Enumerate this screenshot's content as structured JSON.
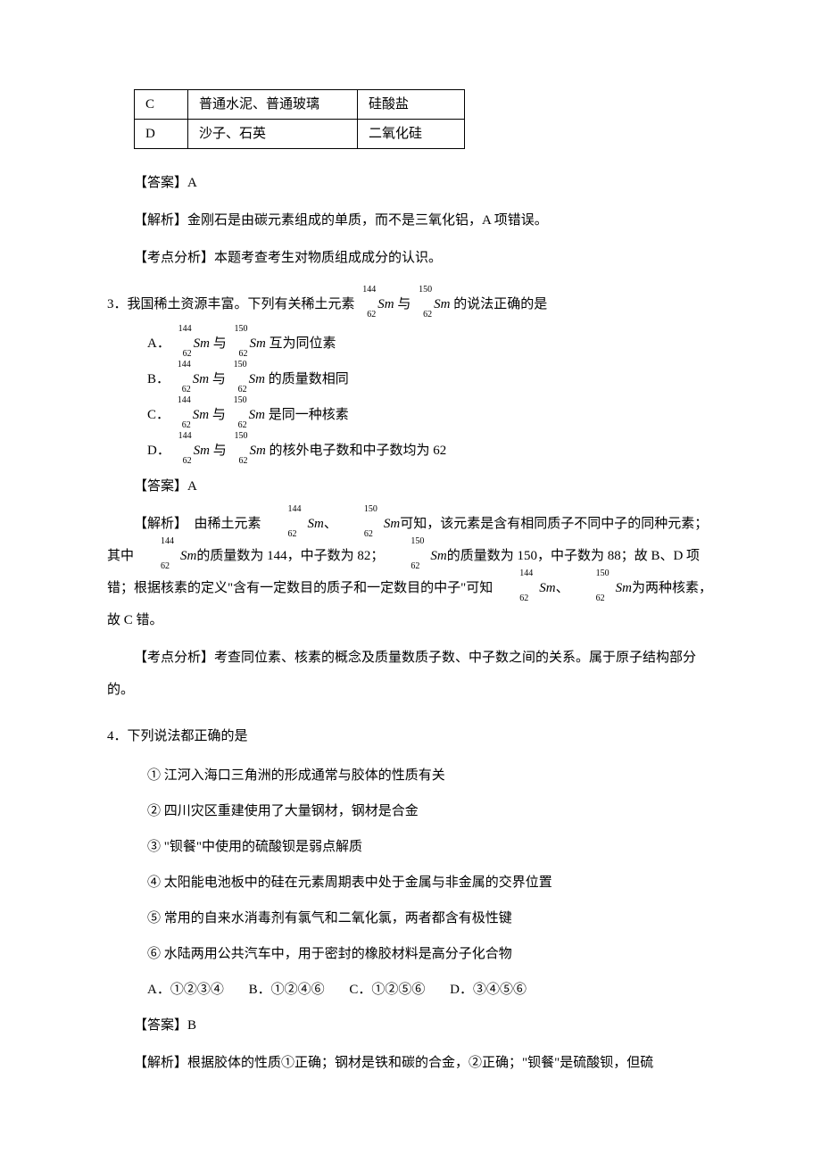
{
  "table": {
    "rows": [
      {
        "c1": "C",
        "c2": "普通水泥、普通玻璃",
        "c3": "硅酸盐"
      },
      {
        "c1": "D",
        "c2": "沙子、石英",
        "c3": "二氧化硅"
      }
    ]
  },
  "q2": {
    "answer_label": "【答案】A",
    "analysis": "【解析】金刚石是由碳元素组成的单质，而不是三氧化铝，A 项错误。",
    "topic": "【考点分析】本题考查考生对物质组成成分的认识。"
  },
  "q3": {
    "stem_prefix": "3．我国稀土资源丰富。下列有关稀土元素",
    "stem_mid": "与",
    "stem_suffix": "的说法正确的是",
    "iso1": {
      "a": "144",
      "z": "62",
      "el": "Sm"
    },
    "iso2": {
      "a": "150",
      "z": "62",
      "el": "Sm"
    },
    "opts": {
      "a_prefix": "A．",
      "a_mid": "与",
      "a_suffix": "互为同位素",
      "b_prefix": "B．",
      "b_mid": "与",
      "b_suffix": "的质量数相同",
      "c_prefix": "C．",
      "c_mid": "与",
      "c_suffix": "是同一种核素",
      "d_prefix": "D．",
      "d_mid": "与",
      "d_suffix": "的核外电子数和中子数均为 62"
    },
    "answer_label": "【答案】A",
    "analysis_prefix": "【解析】　由稀土元素",
    "analysis_sep1": "、",
    "analysis_p1a": "可知，该元素是含有相同质子不同中子的同种元素；其中",
    "analysis_p1b": "的质量数为 144，中子数为 82；",
    "analysis_p1c": "的质量数为 150，中子数为 88；故 B、D 项错；",
    "analysis_p2a": "根据核素的定义\"含有一定数目的质子和一定数目的中子\"可知",
    "analysis_sep2": "、",
    "analysis_p2b": "为两种核素，故 C 错。",
    "topic": "【考点分析】考查同位素、核素的概念及质量数质子数、中子数之间的关系。属于原子结构部分的。"
  },
  "q4": {
    "stem": "4．下列说法都正确的是",
    "items": [
      "① 江河入海口三角洲的形成通常与胶体的性质有关",
      "② 四川灾区重建使用了大量钢材，钢材是合金",
      "③ \"钡餐\"中使用的硫酸钡是弱点解质",
      "④ 太阳能电池板中的硅在元素周期表中处于金属与非金属的交界位置",
      "⑤ 常用的自来水消毒剂有氯气和二氧化氯，两者都含有极性键",
      "⑥ 水陆两用公共汽车中，用于密封的橡胶材料是高分子化合物"
    ],
    "options": {
      "a": "A．①②③④",
      "b": "B．①②④⑥",
      "c": "C．①②⑤⑥",
      "d": "D．③④⑤⑥"
    },
    "answer_label": "【答案】B",
    "analysis": "【解析】根据胶体的性质①正确；钢材是铁和碳的合金，②正确；\"钡餐\"是硫酸钡，但硫"
  }
}
